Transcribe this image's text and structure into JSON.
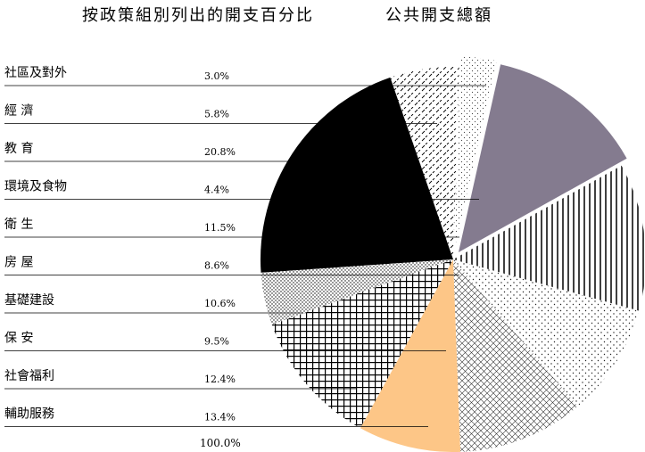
{
  "title": "按政策組別列出的開支百分比",
  "subtitle": "公共開支總額",
  "chart_data": {
    "type": "pie",
    "categories": [
      "社區及對外",
      "經 濟",
      "教 育",
      "環境及食物",
      "衛 生",
      "房 屋",
      "基礎建設",
      "保 安",
      "社會福利",
      "輔助服務"
    ],
    "values": [
      3.0,
      5.8,
      20.8,
      4.4,
      11.5,
      8.6,
      10.6,
      9.5,
      12.4,
      13.4
    ],
    "value_labels": [
      "3.0%",
      "5.8%",
      "20.8%",
      "4.4%",
      "11.5%",
      "8.6%",
      "10.6%",
      "9.5%",
      "12.4%",
      "13.4%"
    ],
    "total_label": "100.0%",
    "colors": {
      "社區及對外": "#ffffff",
      "經 濟": "#ffffff",
      "教 育": "#000000",
      "環境及食物": "#ffffff",
      "衛 生": "#000000",
      "房 屋": "#fdc687",
      "基礎建設": "#ffffff",
      "保 安": "#ffffff",
      "社會福利": "#000000",
      "輔助服務": "#847b8f"
    },
    "patterns": [
      "light-dots",
      "diagonal-dashes",
      "solid-black",
      "dense-dots",
      "grid",
      "solid-orange",
      "cross-hatch",
      "sparse-dots",
      "vertical-lines",
      "solid-grey"
    ],
    "legend": "left"
  }
}
